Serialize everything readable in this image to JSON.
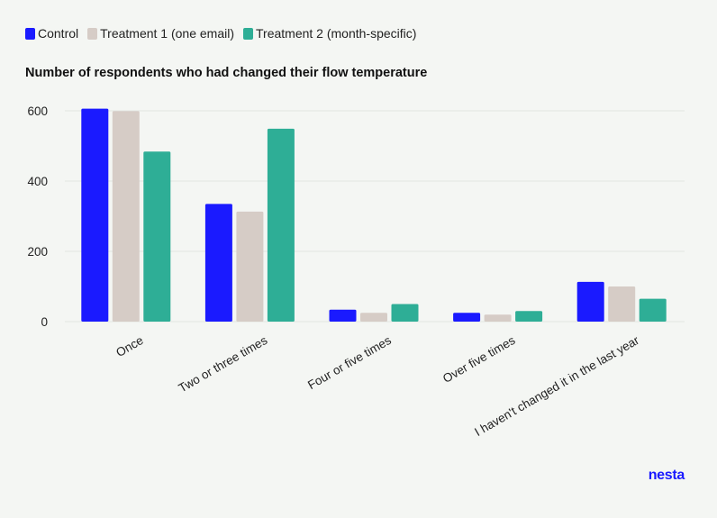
{
  "legend": [
    {
      "label": "Control",
      "color": "#1a1aff"
    },
    {
      "label": "Treatment 1 (one email)",
      "color": "#d6ccc6"
    },
    {
      "label": "Treatment 2 (month-specific)",
      "color": "#2eae96"
    }
  ],
  "brand": {
    "label": "nesta",
    "color": "#1a1aff"
  },
  "chart_data": {
    "type": "bar",
    "title": "Number of respondents who had changed their flow temperature",
    "xlabel": "",
    "ylabel": "",
    "ylim": [
      0,
      600
    ],
    "yticks": [
      0,
      200,
      400,
      600
    ],
    "grid": true,
    "legend_position": "top-left",
    "categories": [
      "Once",
      "Two or three times",
      "Four or five times",
      "Over five times",
      "I haven't changed it in the last year"
    ],
    "series": [
      {
        "name": "Control",
        "color": "#1a1aff",
        "values": [
          606,
          335,
          34,
          25,
          113
        ]
      },
      {
        "name": "Treatment 1 (one email)",
        "color": "#d6ccc6",
        "values": [
          599,
          313,
          25,
          20,
          100
        ]
      },
      {
        "name": "Treatment 2 (month-specific)",
        "color": "#2eae96",
        "values": [
          484,
          549,
          50,
          30,
          65
        ]
      }
    ]
  }
}
